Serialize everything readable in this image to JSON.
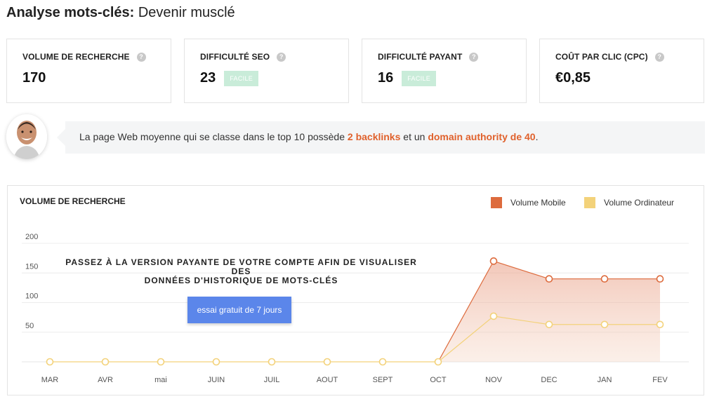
{
  "header": {
    "title_bold": "Analyse mots-clés:",
    "title_rest": "Devenir musclé"
  },
  "metrics": [
    {
      "label": "VOLUME DE RECHERCHE",
      "value": "170",
      "badge": ""
    },
    {
      "label": "DIFFICULTÉ SEO",
      "value": "23",
      "badge": "FACILE"
    },
    {
      "label": "DIFFICULTÉ PAYANT",
      "value": "16",
      "badge": "FACILE"
    },
    {
      "label": "COÛT PAR CLIC (CPC)",
      "value": "€0,85",
      "badge": ""
    }
  ],
  "info": {
    "text_1": "La page Web moyenne qui se classe dans le top 10 possède",
    "highlight_1": "2 backlinks",
    "text_2": "et un",
    "highlight_2": "domain authority de 40",
    "text_3": "."
  },
  "chart_section": {
    "title": "VOLUME DE RECHERCHE",
    "overlay_line1": "PASSEZ À LA VERSION PAYANTE DE VOTRE COMPTE AFIN DE VISUALISER DES",
    "overlay_line2": "DONNÉES D'HISTORIQUE DE MOTS-CLÉS",
    "cta_label": "essai gratuit de 7 jours"
  },
  "colors": {
    "mobile": "#dd6b3d",
    "desktop": "#f3d27a",
    "accent": "#e0612c",
    "cta": "#5b86ea"
  },
  "chart_data": {
    "type": "area",
    "categories": [
      "MAR",
      "AVR",
      "mai",
      "JUIN",
      "JUIL",
      "AOUT",
      "SEPT",
      "OCT",
      "NOV",
      "DEC",
      "JAN",
      "FEV"
    ],
    "series": [
      {
        "name": "Volume Mobile",
        "values": [
          0,
          0,
          0,
          0,
          0,
          0,
          0,
          0,
          170,
          140,
          140,
          140
        ]
      },
      {
        "name": "Volume Ordinateur",
        "values": [
          0,
          0,
          0,
          0,
          0,
          0,
          0,
          0,
          77,
          63,
          63,
          63
        ]
      }
    ],
    "yticks": [
      "200",
      "150",
      "100",
      "50"
    ],
    "ylim": [
      0,
      200
    ],
    "grid": true,
    "legend_position": "top-right"
  }
}
